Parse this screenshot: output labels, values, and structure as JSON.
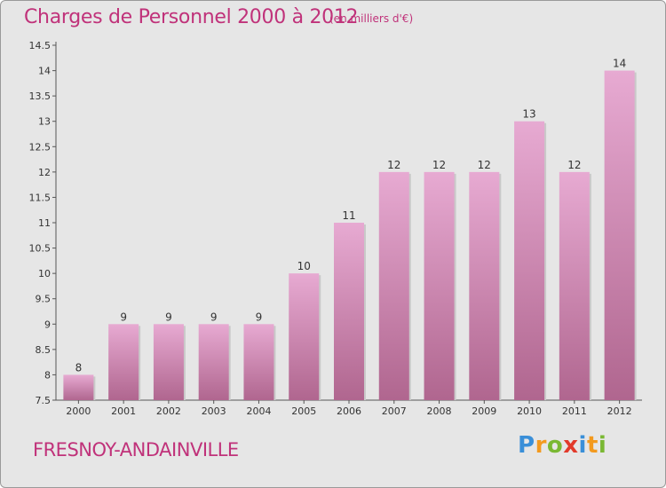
{
  "header": {
    "title": "Charges de Personnel 2000 à 2012",
    "subtitle": "(en milliers d'€)"
  },
  "footer": {
    "commune": "FRESNOY-ANDAINVILLE",
    "logo": {
      "letters": [
        "P",
        "r",
        "o",
        "x",
        "i",
        "t",
        "i"
      ],
      "colors": [
        "#3a8fd8",
        "#f39a1e",
        "#7ab833",
        "#e23a2b",
        "#3a8fd8",
        "#f39a1e",
        "#7ab833"
      ]
    }
  },
  "colors": {
    "bar_light": "#e7aad2",
    "bar_dark": "#b0668f",
    "text_accent": "#c0327a"
  },
  "chart_data": {
    "type": "bar",
    "title": "Charges de Personnel 2000 à 2012",
    "subtitle": "(en milliers d'€)",
    "categories": [
      "2000",
      "2001",
      "2002",
      "2003",
      "2004",
      "2005",
      "2006",
      "2007",
      "2008",
      "2009",
      "2010",
      "2011",
      "2012"
    ],
    "values": [
      8,
      9,
      9,
      9,
      9,
      10,
      11,
      12,
      12,
      12,
      13,
      12,
      14
    ],
    "ylim": [
      7.5,
      14.5
    ],
    "yticks": [
      "7.5",
      "8",
      "8.5",
      "9",
      "9.5",
      "10",
      "10.5",
      "11",
      "11.5",
      "12",
      "12.5",
      "13",
      "13.5",
      "14",
      "14.5"
    ],
    "grid": false,
    "legend": "none"
  }
}
